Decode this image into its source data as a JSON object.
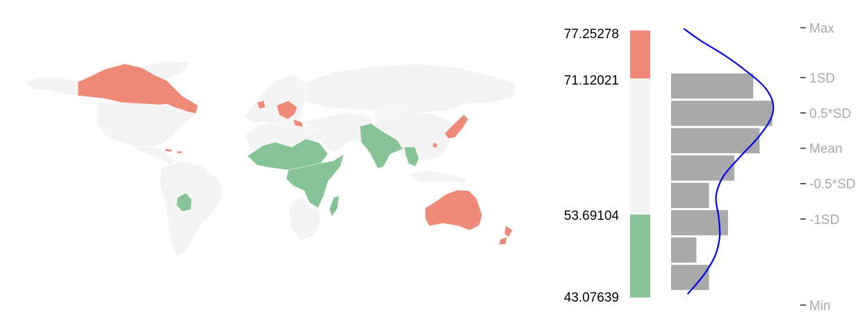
{
  "colors": {
    "high": "#ef8a78",
    "low": "#86c496",
    "neutral": "#f4f4f4",
    "bar": "#a9a9a9",
    "density": "#0000ee",
    "stat_text": "#a8a8a8"
  },
  "chart_data": {
    "type": "histogram",
    "map_type": "choropleth-world",
    "value_axis": {
      "min": 43.07639,
      "max": 77.25278
    },
    "legend_values": {
      "max": "77.25278",
      "upper_threshold": "71.12021",
      "lower_threshold": "53.69104",
      "min": "43.07639"
    },
    "color_bands": [
      {
        "from": 71.12021,
        "to": 77.25278,
        "color": "high"
      },
      {
        "from": 53.69104,
        "to": 71.12021,
        "color": "neutral"
      },
      {
        "from": 43.07639,
        "to": 53.69104,
        "color": "low"
      }
    ],
    "stat_markers": [
      {
        "label": "Max",
        "value": 77.25278
      },
      {
        "label": "1SD",
        "value": 71.12021
      },
      {
        "label": "0.5*SD",
        "value": 66.76
      },
      {
        "label": "Mean",
        "value": 62.41
      },
      {
        "label": "-0.5*SD",
        "value": 58.05
      },
      {
        "label": "-1SD",
        "value": 53.69104
      },
      {
        "label": "Min",
        "value": 43.07639
      }
    ],
    "bins": [
      {
        "from": 43.9,
        "to": 47.4,
        "count": 6
      },
      {
        "from": 47.4,
        "to": 50.9,
        "count": 4
      },
      {
        "from": 50.9,
        "to": 54.4,
        "count": 9
      },
      {
        "from": 54.4,
        "to": 57.9,
        "count": 6
      },
      {
        "from": 57.9,
        "to": 61.4,
        "count": 10
      },
      {
        "from": 61.4,
        "to": 64.9,
        "count": 14
      },
      {
        "from": 64.9,
        "to": 68.4,
        "count": 16
      },
      {
        "from": 68.4,
        "to": 71.9,
        "count": 13
      }
    ],
    "density_curve": [
      {
        "value": 43.5,
        "density": 2.6
      },
      {
        "value": 46.0,
        "density": 5.2
      },
      {
        "value": 48.5,
        "density": 7.0
      },
      {
        "value": 51.0,
        "density": 7.7
      },
      {
        "value": 53.5,
        "density": 7.5
      },
      {
        "value": 56.0,
        "density": 7.1
      },
      {
        "value": 58.5,
        "density": 8.2
      },
      {
        "value": 61.0,
        "density": 10.8
      },
      {
        "value": 63.5,
        "density": 13.7
      },
      {
        "value": 66.0,
        "density": 15.8
      },
      {
        "value": 68.0,
        "density": 16.1
      },
      {
        "value": 70.0,
        "density": 14.8
      },
      {
        "value": 72.0,
        "density": 12.0
      },
      {
        "value": 74.0,
        "density": 8.6
      },
      {
        "value": 76.0,
        "density": 4.6
      },
      {
        "value": 77.5,
        "density": 2.0
      }
    ],
    "map_regions": [
      {
        "name": "canada",
        "class": "high"
      },
      {
        "name": "usa",
        "class": "neutral"
      },
      {
        "name": "greenland",
        "class": "neutral"
      },
      {
        "name": "central-america",
        "class": "neutral"
      },
      {
        "name": "south-america",
        "class": "neutral"
      },
      {
        "name": "bolivia",
        "class": "low"
      },
      {
        "name": "europe",
        "class": "neutral"
      },
      {
        "name": "uk-ireland",
        "class": "high"
      },
      {
        "name": "central-europe",
        "class": "high"
      },
      {
        "name": "russia",
        "class": "neutral"
      },
      {
        "name": "north-africa",
        "class": "neutral"
      },
      {
        "name": "west-africa",
        "class": "low"
      },
      {
        "name": "central-east-africa",
        "class": "low"
      },
      {
        "name": "southern-africa",
        "class": "neutral"
      },
      {
        "name": "madagascar",
        "class": "low"
      },
      {
        "name": "middle-east",
        "class": "neutral"
      },
      {
        "name": "south-asia",
        "class": "low"
      },
      {
        "name": "china",
        "class": "neutral"
      },
      {
        "name": "southeast-asia",
        "class": "low"
      },
      {
        "name": "japan",
        "class": "high"
      },
      {
        "name": "australia",
        "class": "high"
      },
      {
        "name": "new-zealand",
        "class": "high"
      }
    ]
  }
}
